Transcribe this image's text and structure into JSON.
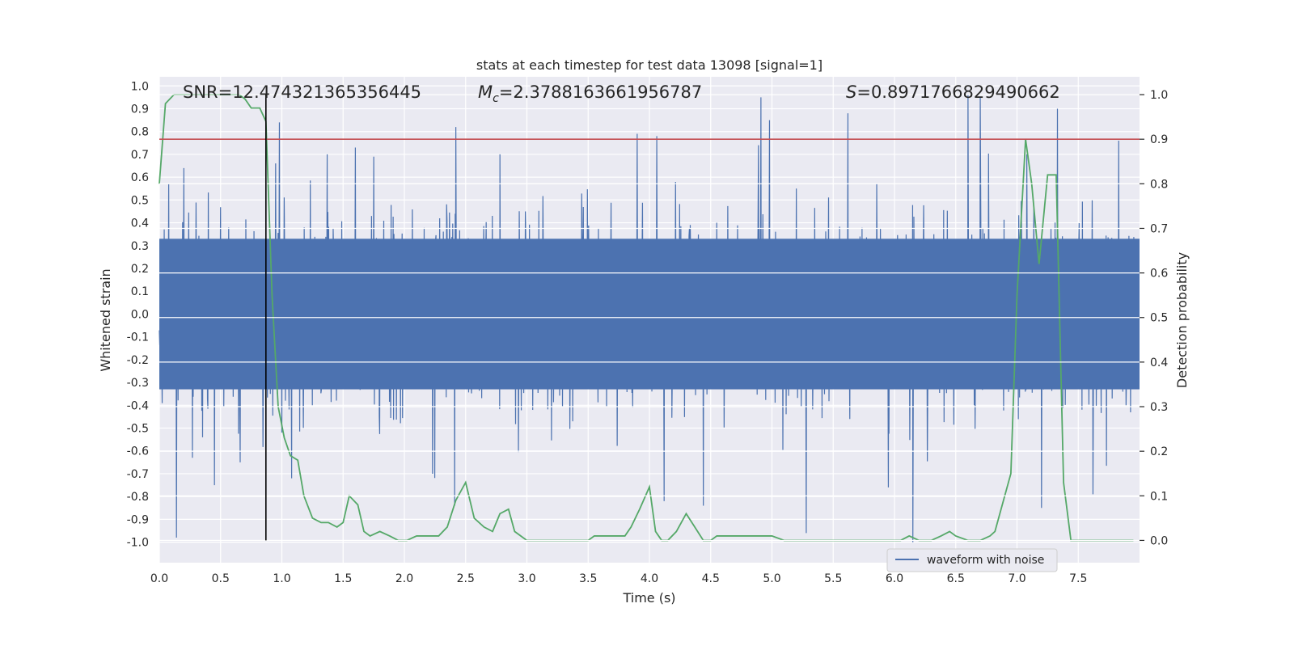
{
  "chart_data": {
    "type": "line",
    "title": "stats at each timestep for test data 13098 [signal=1]",
    "xlabel": "Time (s)",
    "ylabel": "Whitened strain",
    "y2label": "Detection probability",
    "xlim": [
      0.0,
      8.0
    ],
    "ylim": [
      -1.09,
      1.04
    ],
    "y2lim": [
      -0.05,
      1.04
    ],
    "xticks": [
      "0.0",
      "0.5",
      "1.0",
      "1.5",
      "2.0",
      "2.5",
      "3.0",
      "3.5",
      "4.0",
      "4.5",
      "5.0",
      "5.5",
      "6.0",
      "6.5",
      "7.0",
      "7.5"
    ],
    "yticks": [
      "1.0",
      "0.9",
      "0.8",
      "0.7",
      "0.6",
      "0.5",
      "0.4",
      "0.3",
      "0.2",
      "0.1",
      "0.0",
      "-0.1",
      "-0.2",
      "-0.3",
      "-0.4",
      "-0.5",
      "-0.6",
      "-0.7",
      "-0.8",
      "-0.9",
      "-1.0"
    ],
    "y2ticks": [
      "1.0",
      "0.9",
      "0.8",
      "0.7",
      "0.6",
      "0.5",
      "0.4",
      "0.3",
      "0.2",
      "0.1",
      "0.0"
    ],
    "annotations": {
      "snr": "SNR=12.474321365356445",
      "mc_symbol": "M",
      "mc_sub": "c",
      "mc_value": "=2.3788163661956787",
      "s_symbol": "S",
      "s_value": "=0.8971766829490662"
    },
    "threshold": 0.9,
    "vline_x": 0.87,
    "series": [
      {
        "name": "waveform with noise",
        "color": "#4c72b0",
        "sample_rate_hz": 2048,
        "core_amplitude": 0.33,
        "peaks": [
          {
            "x": 0.14,
            "y": -0.98
          },
          {
            "x": 0.2,
            "y": 0.64
          },
          {
            "x": 0.27,
            "y": -0.63
          },
          {
            "x": 0.45,
            "y": -0.75
          },
          {
            "x": 0.66,
            "y": -0.65
          },
          {
            "x": 0.98,
            "y": 0.84
          },
          {
            "x": 1.0,
            "y": -0.52
          },
          {
            "x": 1.08,
            "y": -0.72
          },
          {
            "x": 1.37,
            "y": 0.7
          },
          {
            "x": 1.6,
            "y": 0.73
          },
          {
            "x": 1.75,
            "y": 0.69
          },
          {
            "x": 2.23,
            "y": -0.7
          },
          {
            "x": 2.42,
            "y": 0.82
          },
          {
            "x": 2.41,
            "y": -0.84
          },
          {
            "x": 2.78,
            "y": 0.7
          },
          {
            "x": 3.9,
            "y": 0.79
          },
          {
            "x": 4.06,
            "y": 0.78
          },
          {
            "x": 4.12,
            "y": -0.82
          },
          {
            "x": 4.44,
            "y": -0.84
          },
          {
            "x": 4.89,
            "y": 0.74
          },
          {
            "x": 4.91,
            "y": 0.95
          },
          {
            "x": 4.98,
            "y": 0.85
          },
          {
            "x": 5.28,
            "y": -0.96
          },
          {
            "x": 5.62,
            "y": 0.88
          },
          {
            "x": 5.95,
            "y": -0.76
          },
          {
            "x": 6.15,
            "y": -1.0
          },
          {
            "x": 6.6,
            "y": 0.96
          },
          {
            "x": 6.7,
            "y": 0.95
          },
          {
            "x": 7.08,
            "y": 0.7
          },
          {
            "x": 7.2,
            "y": -0.85
          },
          {
            "x": 7.33,
            "y": 0.9
          },
          {
            "x": 7.62,
            "y": -0.79
          },
          {
            "x": 7.83,
            "y": 0.76
          }
        ]
      },
      {
        "name": "",
        "color": "#55a868",
        "x": [
          0.0,
          0.05,
          0.12,
          0.2,
          0.3,
          0.4,
          0.5,
          0.6,
          0.65,
          0.7,
          0.75,
          0.82,
          0.87,
          0.92,
          0.97,
          1.02,
          1.07,
          1.13,
          1.18,
          1.25,
          1.32,
          1.38,
          1.45,
          1.5,
          1.55,
          1.62,
          1.67,
          1.72,
          1.8,
          1.88,
          1.95,
          2.02,
          2.1,
          2.2,
          2.28,
          2.35,
          2.42,
          2.5,
          2.57,
          2.65,
          2.72,
          2.78,
          2.85,
          2.9,
          3.0,
          3.2,
          3.4,
          3.5,
          3.55,
          3.6,
          3.7,
          3.8,
          3.85,
          3.92,
          4.0,
          4.05,
          4.1,
          4.15,
          4.22,
          4.3,
          4.37,
          4.44,
          4.5,
          4.55,
          4.62,
          4.7,
          4.8,
          4.88,
          4.95,
          5.0,
          5.1,
          5.2,
          5.35,
          5.5,
          5.7,
          5.9,
          6.05,
          6.12,
          6.2,
          6.3,
          6.38,
          6.45,
          6.5,
          6.6,
          6.7,
          6.78,
          6.82,
          6.9,
          6.95,
          7.0,
          7.07,
          7.12,
          7.18,
          7.25,
          7.32,
          7.38,
          7.44,
          7.5,
          7.7,
          7.95
        ],
        "values": [
          0.8,
          0.98,
          1.0,
          1.0,
          1.0,
          1.0,
          1.0,
          1.0,
          1.0,
          0.99,
          0.97,
          0.97,
          0.94,
          0.55,
          0.3,
          0.23,
          0.19,
          0.18,
          0.1,
          0.05,
          0.04,
          0.04,
          0.03,
          0.04,
          0.1,
          0.08,
          0.02,
          0.01,
          0.02,
          0.01,
          0.0,
          0.0,
          0.01,
          0.01,
          0.01,
          0.03,
          0.09,
          0.13,
          0.05,
          0.03,
          0.02,
          0.06,
          0.07,
          0.02,
          0.0,
          0.0,
          0.0,
          0.0,
          0.01,
          0.01,
          0.01,
          0.01,
          0.03,
          0.07,
          0.12,
          0.02,
          0.0,
          0.0,
          0.02,
          0.06,
          0.03,
          0.0,
          0.0,
          0.01,
          0.01,
          0.01,
          0.01,
          0.01,
          0.01,
          0.01,
          0.0,
          0.0,
          0.0,
          0.0,
          0.0,
          0.0,
          0.0,
          0.01,
          0.0,
          0.0,
          0.01,
          0.02,
          0.01,
          0.0,
          0.0,
          0.01,
          0.02,
          0.1,
          0.15,
          0.55,
          0.9,
          0.8,
          0.62,
          0.82,
          0.82,
          0.13,
          0.0,
          0.0,
          0.0,
          0.0
        ]
      }
    ],
    "legend": {
      "placement": "lower-right",
      "entries": [
        "waveform with noise"
      ]
    },
    "grid": true,
    "colors": {
      "plot_bg": "#eaeaf2",
      "grid": "#ffffff",
      "threshold_line": "#c44e52",
      "vline": "#000000"
    }
  }
}
